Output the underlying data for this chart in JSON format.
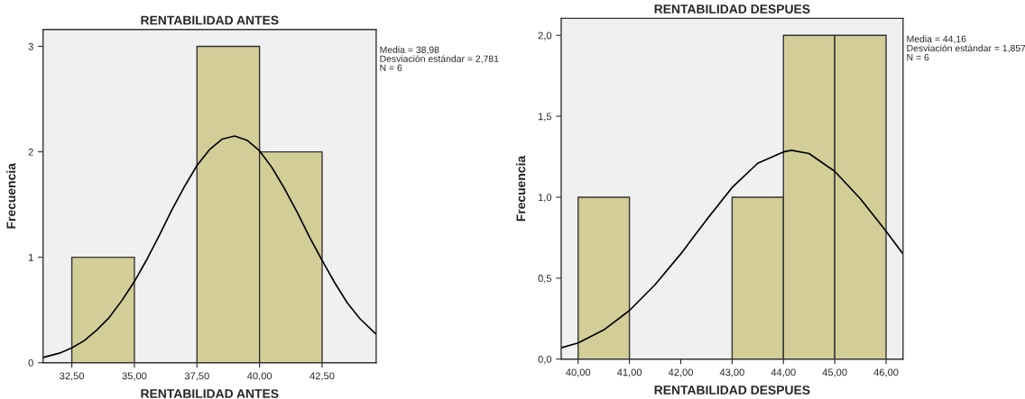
{
  "chart_data": [
    {
      "type": "histogram",
      "title": "RENTABILIDAD ANTES",
      "xlabel": "RENTABILIDAD ANTES",
      "ylabel": "Frecuencia",
      "bins": [
        32.5,
        35,
        37.5,
        40,
        42.5
      ],
      "values": [
        1,
        0,
        3,
        2
      ],
      "color": "#d3cd97",
      "series": [
        {
          "type": "line",
          "color": "#000000",
          "x": [
            31.35,
            32,
            32.5,
            33,
            33.5,
            34,
            34.5,
            35,
            35.5,
            36,
            36.5,
            37,
            37.5,
            38,
            38.5,
            39,
            39.5,
            40,
            40.5,
            41,
            41.5,
            42,
            42.5,
            43,
            43.5,
            44,
            44.66
          ],
          "values": [
            0.05,
            0.09,
            0.14,
            0.21,
            0.31,
            0.43,
            0.59,
            0.77,
            0.98,
            1.21,
            1.45,
            1.67,
            1.87,
            2.02,
            2.12,
            2.15,
            2.11,
            2.01,
            1.85,
            1.65,
            1.43,
            1.19,
            0.97,
            0.76,
            0.57,
            0.42,
            0.27
          ]
        }
      ],
      "xlim": [
        31.35,
        44.66
      ],
      "ylim": [
        0,
        3.16
      ],
      "xticks": [
        {
          "value": 32.5,
          "label": "32,50"
        },
        {
          "value": 35,
          "label": "35,00"
        },
        {
          "value": 37.5,
          "label": "37,50"
        },
        {
          "value": 40,
          "label": "40,00"
        },
        {
          "value": 42.5,
          "label": "42,50"
        }
      ],
      "yticks": [
        0,
        1,
        2,
        3
      ],
      "grid": false,
      "legend": false,
      "annotations": [
        "Media = 38,98",
        "Desviación estándar = 2,781",
        "N = 6"
      ]
    },
    {
      "type": "histogram",
      "title": "RENTABILIDAD DESPUES",
      "xlabel": "RENTABILIDAD DESPUES",
      "ylabel": "Frecuencia",
      "bins": [
        40,
        41,
        42,
        43,
        44,
        45,
        46
      ],
      "values": [
        1,
        0,
        0,
        1,
        2,
        2
      ],
      "color": "#d3cd97",
      "series": [
        {
          "type": "line",
          "color": "#000000",
          "x": [
            39.67,
            40,
            40.5,
            41,
            41.5,
            42,
            42.5,
            43,
            43.5,
            44,
            44.16,
            44.5,
            45,
            45.5,
            46,
            46.33
          ],
          "values": [
            0.07,
            0.1,
            0.18,
            0.3,
            0.46,
            0.65,
            0.86,
            1.06,
            1.21,
            1.28,
            1.29,
            1.27,
            1.16,
            0.99,
            0.79,
            0.65
          ]
        }
      ],
      "xlim": [
        39.67,
        46.33
      ],
      "ylim": [
        0,
        2.105
      ],
      "xticks": [
        {
          "value": 40,
          "label": "40,00"
        },
        {
          "value": 41,
          "label": "41,00"
        },
        {
          "value": 42,
          "label": "42,00"
        },
        {
          "value": 43,
          "label": "43,00"
        },
        {
          "value": 44,
          "label": "44,00"
        },
        {
          "value": 45,
          "label": "45,00"
        },
        {
          "value": 46,
          "label": "46,00"
        }
      ],
      "yticks": [
        {
          "value": 0,
          "label": "0,0"
        },
        {
          "value": 0.5,
          "label": "0,5"
        },
        {
          "value": 1,
          "label": "1,0"
        },
        {
          "value": 1.5,
          "label": "1,5"
        },
        {
          "value": 2,
          "label": "2,0"
        }
      ],
      "grid": false,
      "legend": false,
      "annotations": [
        "Media = 44,16",
        "Desviación estándar = 1,857",
        "N = 6"
      ]
    }
  ]
}
